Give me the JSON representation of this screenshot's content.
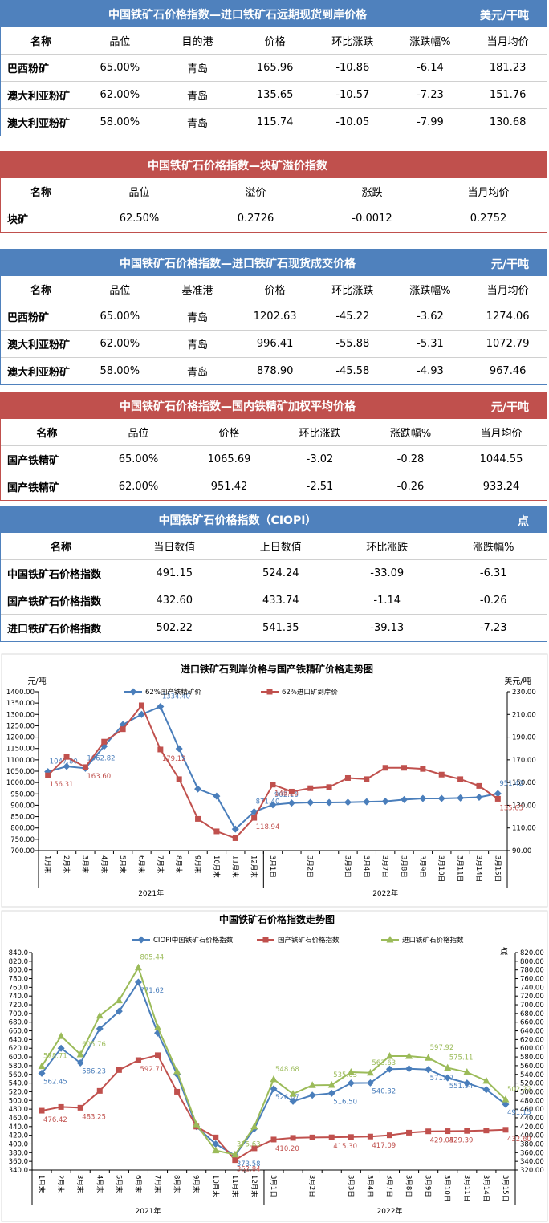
{
  "tables": [
    {
      "title": "中国铁矿石价格指数—进口铁矿石远期现货到岸价格",
      "unit": "美元/干吨",
      "color": "#4f81bd",
      "columns": [
        "名称",
        "品位",
        "目的港",
        "价格",
        "环比涨跌",
        "涨跌幅%",
        "当月均价"
      ],
      "rows": [
        [
          "巴西粉矿",
          "65.00%",
          "青岛",
          "165.96",
          "-10.86",
          "-6.14",
          "181.23"
        ],
        [
          "澳大利亚粉矿",
          "62.00%",
          "青岛",
          "135.65",
          "-10.57",
          "-7.23",
          "151.76"
        ],
        [
          "澳大利亚粉矿",
          "58.00%",
          "青岛",
          "115.74",
          "-10.05",
          "-7.99",
          "130.68"
        ]
      ]
    },
    {
      "title": "中国铁矿石价格指数—块矿溢价指数",
      "color": "#c0504d",
      "columns": [
        "名称",
        "品位",
        "溢价",
        "涨跌",
        "当月均价"
      ],
      "rows": [
        [
          "块矿",
          "62.50%",
          "0.2726",
          "-0.0012",
          "0.2752"
        ]
      ]
    },
    {
      "title": "中国铁矿石价格指数—进口铁矿石现货成交价格",
      "unit": "元/干吨",
      "color": "#4f81bd",
      "columns": [
        "名称",
        "品位",
        "基准港",
        "价格",
        "环比涨跌",
        "涨跌幅%",
        "当月均价"
      ],
      "rows": [
        [
          "巴西粉矿",
          "65.00%",
          "青岛",
          "1202.63",
          "-45.22",
          "-3.62",
          "1274.06"
        ],
        [
          "澳大利亚粉矿",
          "62.00%",
          "青岛",
          "996.41",
          "-55.88",
          "-5.31",
          "1072.79"
        ],
        [
          "澳大利亚粉矿",
          "58.00%",
          "青岛",
          "878.90",
          "-45.58",
          "-4.93",
          "967.46"
        ]
      ]
    },
    {
      "title": "中国铁矿石价格指数—国内铁精矿加权平均价格",
      "unit": "元/干吨",
      "color": "#c0504d",
      "columns": [
        "名称",
        "品位",
        "价格",
        "环比涨跌",
        "涨跌幅%",
        "当月均价"
      ],
      "rows": [
        [
          "国产铁精矿",
          "65.00%",
          "1065.69",
          "-3.02",
          "-0.28",
          "1044.55"
        ],
        [
          "国产铁精矿",
          "62.00%",
          "951.42",
          "-2.51",
          "-0.26",
          "933.24"
        ]
      ]
    },
    {
      "title": "中国铁矿石价格指数（CIOPI）",
      "unit": "点",
      "color": "#4f81bd",
      "columns": [
        "名称",
        "当日数值",
        "上日数值",
        "环比涨跌",
        "涨跌幅%"
      ],
      "rows": [
        [
          "中国铁矿石价格指数",
          "491.15",
          "524.24",
          "-33.09",
          "-6.31"
        ],
        [
          "国产铁矿石价格指数",
          "432.60",
          "433.74",
          "-1.14",
          "-0.26"
        ],
        [
          "进口铁矿石价格指数",
          "502.22",
          "541.35",
          "-39.13",
          "-7.23"
        ]
      ]
    }
  ],
  "chart_data": [
    {
      "type": "line",
      "title": "进口铁矿石到岸价格与国产铁精矿价格走势图",
      "y_unit": "元/吨",
      "y2_unit": "美元/吨",
      "category_groups": [
        {
          "label": "2021年",
          "categories": [
            "1月末",
            "2月末",
            "3月末",
            "4月末",
            "5月末",
            "6月末",
            "7月末",
            "8月末",
            "9月末",
            "10月末",
            "11月末",
            "12月末"
          ]
        },
        {
          "label": "2022年",
          "categories": [
            "3月1日",
            null,
            "3月2日",
            null,
            "3月3日",
            "3月4日",
            "3月7日",
            "3月8日",
            "3月9日",
            "3月10日",
            "3月11日",
            "3月14日",
            "3月15日"
          ]
        }
      ],
      "ylim": [
        700,
        1400
      ],
      "yticks": [
        {
          "value": 700,
          "label": "700.00"
        },
        {
          "value": 750,
          "label": "750.00"
        },
        {
          "value": 800,
          "label": "800.00"
        },
        {
          "value": 850,
          "label": "850.00"
        },
        {
          "value": 900,
          "label": "900.00"
        },
        {
          "value": 950,
          "label": "950.00"
        },
        {
          "value": 1000,
          "label": "1000.00"
        },
        {
          "value": 1050,
          "label": "1050.00"
        },
        {
          "value": 1100,
          "label": "1100.00"
        },
        {
          "value": 1150,
          "label": "1150.00"
        },
        {
          "value": 1200,
          "label": "1200.00"
        },
        {
          "value": 1250,
          "label": "1250.00"
        },
        {
          "value": 1300,
          "label": "1300.00"
        },
        {
          "value": 1350,
          "label": "1350.00"
        },
        {
          "value": 1400,
          "label": "1400.00"
        }
      ],
      "y2lim": [
        90,
        230
      ],
      "y2ticks": [
        {
          "value": 90,
          "label": "90.00"
        },
        {
          "value": 110,
          "label": "110.00"
        },
        {
          "value": 130,
          "label": "130.00"
        },
        {
          "value": 150,
          "label": "150.00"
        },
        {
          "value": 170,
          "label": "170.00"
        },
        {
          "value": 190,
          "label": "190.00"
        },
        {
          "value": 210,
          "label": "210.00"
        },
        {
          "value": 230,
          "label": "230.00"
        }
      ],
      "series": [
        {
          "name": "62%国产铁精矿价",
          "color": "#4a7ebb",
          "marker": "diamond",
          "values": [
            1047.8,
            1071,
            1062.82,
            1160,
            1255,
            1300,
            1334.4,
            1149,
            972,
            940,
            795,
            871.4,
            902.16,
            910,
            912,
            912,
            913,
            915,
            917,
            925,
            930,
            930,
            932,
            935,
            951.42
          ],
          "value_labels": [
            "1047.80",
            null,
            "1062.82",
            null,
            null,
            null,
            "1334.40",
            null,
            null,
            null,
            null,
            "871.40",
            "902.16",
            null,
            null,
            null,
            null,
            null,
            null,
            null,
            null,
            null,
            null,
            null,
            "951.42"
          ]
        },
        {
          "name": "62%进口矿到岸价",
          "color": "#c0504d",
          "marker": "square",
          "axis": "y2",
          "values": [
            156.31,
            172.6,
            163.6,
            186,
            197,
            218,
            179.12,
            153,
            118,
            107,
            101,
            118.94,
            148.2,
            142,
            145,
            146,
            154,
            153,
            163,
            163,
            162,
            157,
            153,
            147,
            135.65
          ],
          "value_labels": [
            "156.31",
            null,
            "163.60",
            null,
            null,
            null,
            "179.12",
            null,
            null,
            null,
            null,
            "118.94",
            "148.20",
            null,
            null,
            null,
            null,
            null,
            null,
            null,
            null,
            null,
            null,
            null,
            "135.65"
          ]
        }
      ]
    },
    {
      "type": "line",
      "title": "中国铁矿石价格指数走势图",
      "y2_unit": "点",
      "category_groups": [
        {
          "label": "2021年",
          "categories": [
            "1月末",
            "2月末",
            "3月末",
            "4月末",
            "5月末",
            "6月末",
            "7月末",
            "8月末",
            "9月末",
            "10月末",
            "11月末",
            "12月末"
          ]
        },
        {
          "label": "2022年",
          "categories": [
            "3月1日",
            null,
            "3月2日",
            null,
            "3月3日",
            "3月4日",
            "3月7日",
            "3月8日",
            "3月9日",
            "3月10日",
            "3月11日",
            "3月14日",
            "3月15日"
          ]
        }
      ],
      "ylim": [
        340,
        840
      ],
      "yticks": [
        {
          "value": 340,
          "label": "340.0"
        },
        {
          "value": 360,
          "label": "360.0"
        },
        {
          "value": 380,
          "label": "380.0"
        },
        {
          "value": 400,
          "label": "400.0"
        },
        {
          "value": 420,
          "label": "420.0"
        },
        {
          "value": 440,
          "label": "440.0"
        },
        {
          "value": 460,
          "label": "460.0"
        },
        {
          "value": 480,
          "label": "480.0"
        },
        {
          "value": 500,
          "label": "500.0"
        },
        {
          "value": 520,
          "label": "520.0"
        },
        {
          "value": 540,
          "label": "540.0"
        },
        {
          "value": 560,
          "label": "560.0"
        },
        {
          "value": 580,
          "label": "580.0"
        },
        {
          "value": 600,
          "label": "600.0"
        },
        {
          "value": 620,
          "label": "620.0"
        },
        {
          "value": 640,
          "label": "640.0"
        },
        {
          "value": 660,
          "label": "660.0"
        },
        {
          "value": 680,
          "label": "680.0"
        },
        {
          "value": 700,
          "label": "700.0"
        },
        {
          "value": 720,
          "label": "720.0"
        },
        {
          "value": 740,
          "label": "740.0"
        },
        {
          "value": 760,
          "label": "760.0"
        },
        {
          "value": 780,
          "label": "780.0"
        },
        {
          "value": 800,
          "label": "800.0"
        },
        {
          "value": 820,
          "label": "820.0"
        },
        {
          "value": 840,
          "label": "840.0"
        }
      ],
      "y2lim": [
        320,
        820
      ],
      "y2ticks": [
        {
          "value": 320,
          "label": "320.00"
        },
        {
          "value": 340,
          "label": "340.00"
        },
        {
          "value": 360,
          "label": "360.00"
        },
        {
          "value": 380,
          "label": "380.00"
        },
        {
          "value": 400,
          "label": "400.00"
        },
        {
          "value": 420,
          "label": "420.00"
        },
        {
          "value": 440,
          "label": "440.00"
        },
        {
          "value": 460,
          "label": "460.00"
        },
        {
          "value": 480,
          "label": "480.00"
        },
        {
          "value": 500,
          "label": "500.00"
        },
        {
          "value": 520,
          "label": "520.00"
        },
        {
          "value": 540,
          "label": "540.00"
        },
        {
          "value": 560,
          "label": "560.00"
        },
        {
          "value": 580,
          "label": "580.00"
        },
        {
          "value": 600,
          "label": "600.00"
        },
        {
          "value": 620,
          "label": "620.00"
        },
        {
          "value": 640,
          "label": "640.00"
        },
        {
          "value": 660,
          "label": "660.00"
        },
        {
          "value": 680,
          "label": "680.00"
        },
        {
          "value": 700,
          "label": "700.00"
        },
        {
          "value": 720,
          "label": "720.00"
        },
        {
          "value": 740,
          "label": "740.00"
        },
        {
          "value": 760,
          "label": "760.00"
        },
        {
          "value": 780,
          "label": "780.00"
        },
        {
          "value": 800,
          "label": "800.00"
        },
        {
          "value": 820,
          "label": "820.00"
        }
      ],
      "series": [
        {
          "name": "CIOPI中国铁矿石价格指数",
          "color": "#4a7ebb",
          "marker": "diamond",
          "values": [
            562.45,
            620,
            586.23,
            665,
            705,
            771.62,
            655,
            560,
            440,
            400,
            373.58,
            435,
            526.67,
            498,
            512,
            516.5,
            540,
            540.32,
            572,
            573,
            571.07,
            551.94,
            540,
            525,
            491.15
          ],
          "value_labels": [
            "562.45",
            null,
            "586.23",
            null,
            null,
            "771.62",
            null,
            null,
            null,
            null,
            "373.58",
            null,
            "526.67",
            null,
            null,
            "516.50",
            null,
            "540.32",
            null,
            null,
            "571.07",
            "551.94",
            null,
            null,
            "491.15"
          ]
        },
        {
          "name": "国产铁矿石价格指数",
          "color": "#c0504d",
          "marker": "square",
          "values": [
            476.42,
            485,
            483.25,
            522,
            570,
            592.71,
            604,
            520,
            440,
            415,
            362.84,
            390,
            410.2,
            414,
            415,
            415.3,
            416,
            417.09,
            420,
            426,
            429.05,
            429.39,
            430,
            431,
            432.6
          ],
          "value_labels": [
            "476.42",
            null,
            "483.25",
            null,
            null,
            "592.71",
            null,
            null,
            null,
            null,
            "362.84",
            null,
            "410.20",
            null,
            null,
            "415.30",
            null,
            "417.09",
            null,
            null,
            "429.05",
            "429.39",
            null,
            null,
            "432.60"
          ]
        },
        {
          "name": "进口铁矿石价格指数",
          "color": "#9bbb59",
          "marker": "triangle",
          "values": [
            578.71,
            648,
            605.76,
            695,
            730,
            805.44,
            668,
            567,
            445,
            385,
            375.63,
            440,
            548.68,
            515,
            535,
            535.63,
            565,
            563.63,
            602,
            602,
            597.92,
            575.11,
            565,
            545,
            502.22
          ],
          "value_labels": [
            "578.71",
            null,
            "605.76",
            null,
            null,
            "805.44",
            null,
            null,
            null,
            null,
            "375.63",
            null,
            "548.68",
            null,
            null,
            "535.63",
            null,
            "563.63",
            null,
            null,
            "597.92",
            "575.11",
            null,
            null,
            "502.22"
          ]
        }
      ]
    }
  ]
}
